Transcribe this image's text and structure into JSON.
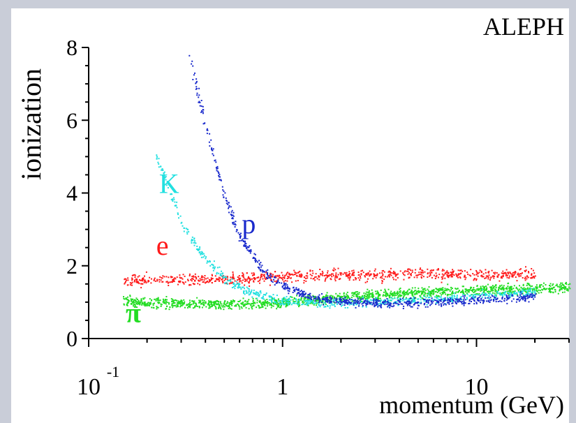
{
  "chart_data": {
    "type": "scatter",
    "title": "ALEPH",
    "xlabel": "momentum (GeV)",
    "ylabel": "ionization",
    "xscale": "log",
    "xlim": [
      0.1,
      30
    ],
    "ylim": [
      0,
      8
    ],
    "x_ticks": [
      {
        "value": 0.1,
        "base": "10",
        "exponent": "-1"
      },
      {
        "value": 1,
        "base": "1",
        "exponent": ""
      },
      {
        "value": 10,
        "base": "10",
        "exponent": ""
      }
    ],
    "y_ticks": [
      "0",
      "2",
      "4",
      "6",
      "8"
    ],
    "grid": false,
    "series": [
      {
        "name": "e",
        "color": "#ff1a1a",
        "points": [
          [
            0.15,
            1.6
          ],
          [
            0.2,
            1.62
          ],
          [
            0.3,
            1.63
          ],
          [
            0.5,
            1.66
          ],
          [
            0.8,
            1.7
          ],
          [
            1,
            1.72
          ],
          [
            2,
            1.75
          ],
          [
            5,
            1.78
          ],
          [
            10,
            1.78
          ],
          [
            20,
            1.76
          ]
        ]
      },
      {
        "name": "π",
        "color": "#22dd22",
        "points": [
          [
            0.15,
            1.05
          ],
          [
            0.2,
            1.0
          ],
          [
            0.3,
            0.97
          ],
          [
            0.5,
            0.96
          ],
          [
            0.8,
            0.98
          ],
          [
            1,
            1.02
          ],
          [
            2,
            1.15
          ],
          [
            5,
            1.28
          ],
          [
            10,
            1.35
          ],
          [
            20,
            1.4
          ],
          [
            30,
            1.42
          ]
        ]
      },
      {
        "name": "K",
        "color": "#22e0e0",
        "points": [
          [
            0.22,
            5.0
          ],
          [
            0.25,
            4.3
          ],
          [
            0.3,
            3.2
          ],
          [
            0.4,
            2.2
          ],
          [
            0.5,
            1.65
          ],
          [
            0.7,
            1.25
          ],
          [
            1,
            1.05
          ],
          [
            2,
            0.98
          ],
          [
            5,
            1.08
          ],
          [
            10,
            1.18
          ],
          [
            20,
            1.3
          ]
        ]
      },
      {
        "name": "p",
        "color": "#1a2acc",
        "points": [
          [
            0.33,
            7.8
          ],
          [
            0.4,
            5.8
          ],
          [
            0.5,
            3.9
          ],
          [
            0.6,
            2.8
          ],
          [
            0.8,
            1.85
          ],
          [
            1,
            1.45
          ],
          [
            1.5,
            1.1
          ],
          [
            3,
            0.98
          ],
          [
            6,
            1.02
          ],
          [
            10,
            1.08
          ],
          [
            20,
            1.15
          ]
        ]
      }
    ]
  }
}
